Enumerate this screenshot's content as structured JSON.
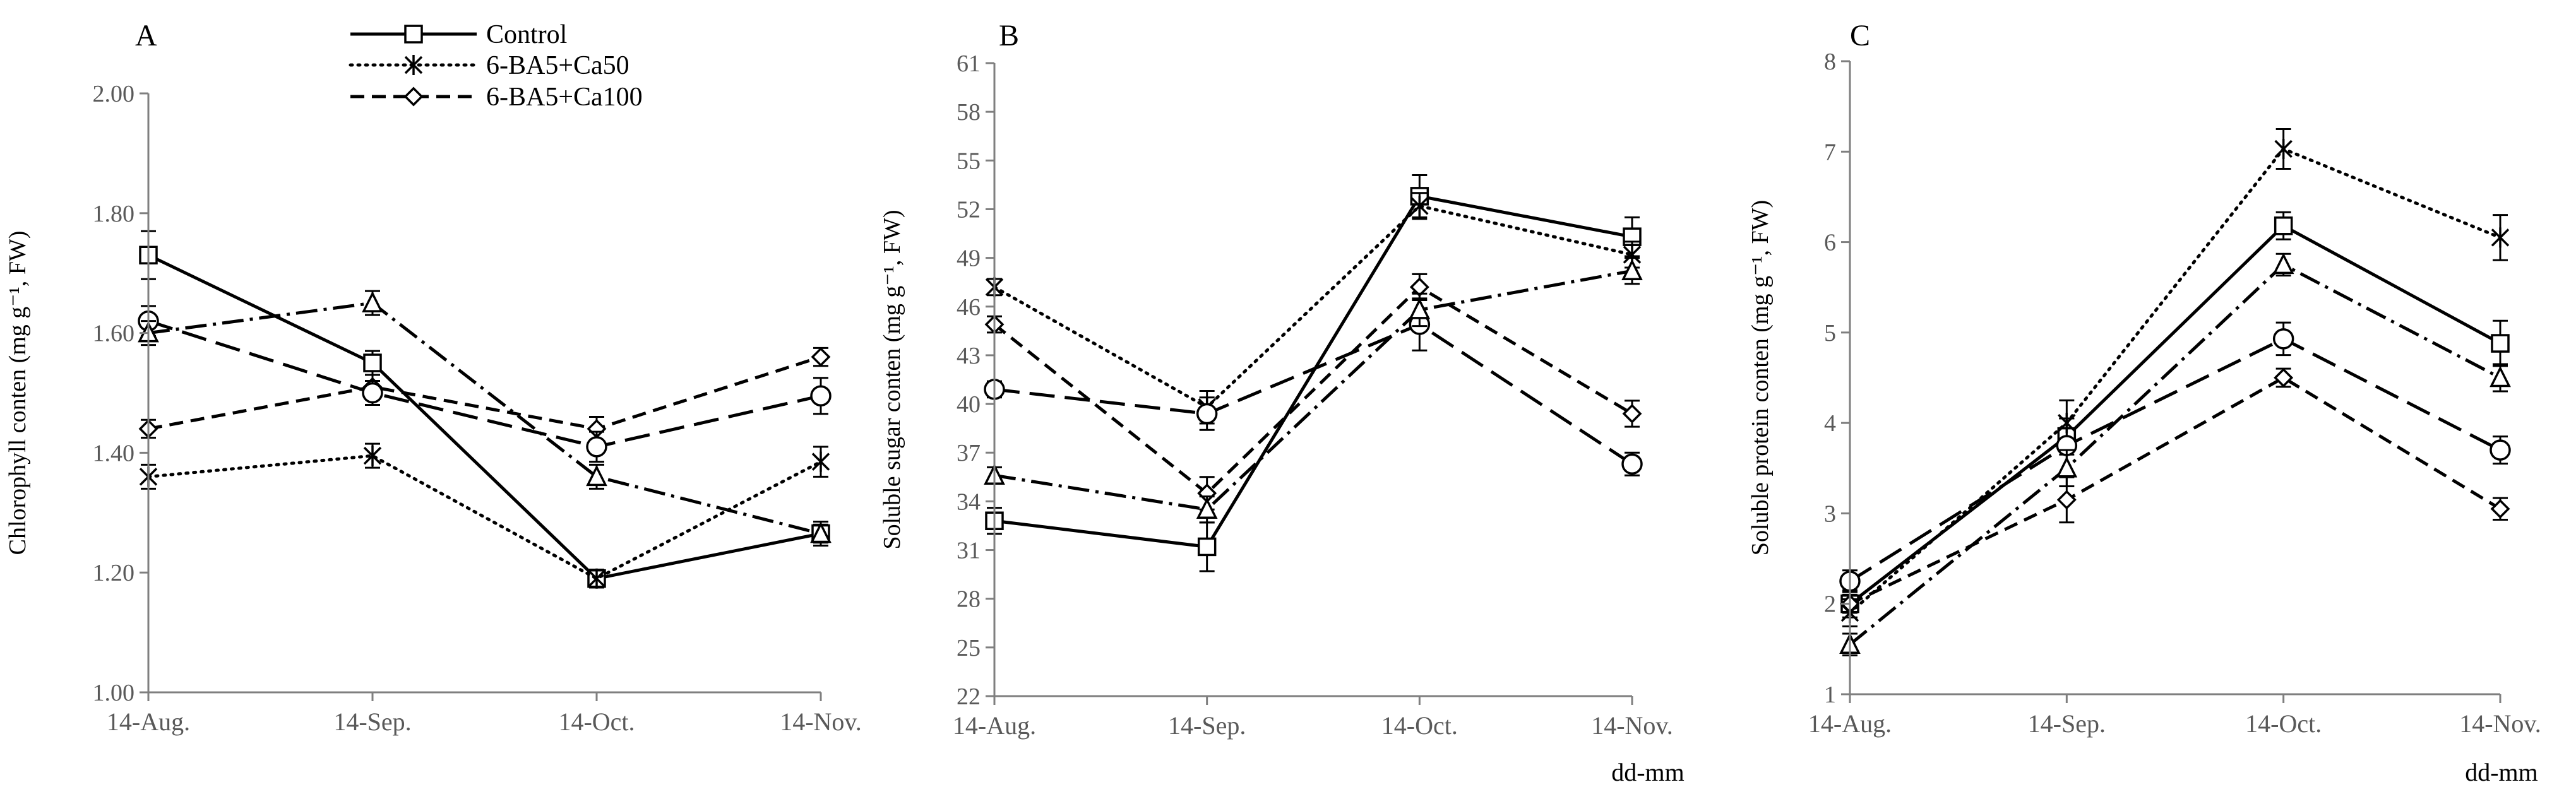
{
  "legend": [
    {
      "name": "Control",
      "marker": "square",
      "dash": "solid"
    },
    {
      "name": "6-BA5+Ca50",
      "marker": "star",
      "dash": "dot"
    },
    {
      "name": "6-BA5+Ca100",
      "marker": "diamond",
      "dash": "dash"
    }
  ],
  "colors": {
    "line": "#000000",
    "axis": "#7f7f7f",
    "tick_text": "#595959",
    "background": "#ffffff"
  },
  "chart_data": [
    {
      "type": "line",
      "panel": "A",
      "ylabel": "Chlorophyll conten (mg g⁻¹, FW)",
      "xlabel": "",
      "categories": [
        "14-Aug.",
        "14-Sep.",
        "14-Oct.",
        "14-Nov."
      ],
      "ylim": [
        1.0,
        2.0
      ],
      "yticks": [
        "1.00",
        "1.20",
        "1.40",
        "1.60",
        "1.80",
        "2.00"
      ],
      "series": [
        {
          "name": "Control",
          "marker": "square",
          "dash": "solid",
          "values": [
            1.73,
            1.55,
            1.19,
            1.265
          ],
          "err": [
            0.04,
            0.02,
            0.015,
            0.02
          ]
        },
        {
          "name": "6-BA5+Ca50",
          "marker": "star",
          "dash": "dot",
          "values": [
            1.36,
            1.395,
            1.19,
            1.385
          ],
          "err": [
            0.02,
            0.02,
            0.015,
            0.025
          ]
        },
        {
          "name": "6-BA5+Ca100",
          "marker": "diamond",
          "dash": "dash",
          "values": [
            1.44,
            1.51,
            1.44,
            1.56
          ],
          "err": [
            0.015,
            0.02,
            0.02,
            0.015
          ]
        },
        {
          "name": "",
          "marker": "circle",
          "dash": "longdash",
          "values": [
            1.62,
            1.5,
            1.41,
            1.495
          ],
          "err": [
            0.025,
            0.02,
            0.025,
            0.03
          ]
        },
        {
          "name": "",
          "marker": "triangle",
          "dash": "dashdot",
          "values": [
            1.6,
            1.65,
            1.36,
            1.265
          ],
          "err": [
            0.02,
            0.02,
            0.02,
            0.015
          ]
        }
      ]
    },
    {
      "type": "line",
      "panel": "B",
      "ylabel": "Soluble sugar conten (mg g⁻¹, FW)",
      "xlabel": "dd-mm",
      "categories": [
        "14-Aug.",
        "14-Sep.",
        "14-Oct.",
        "14-Nov."
      ],
      "ylim": [
        22,
        61
      ],
      "yticks": [
        "22",
        "25",
        "28",
        "31",
        "34",
        "37",
        "40",
        "43",
        "46",
        "49",
        "52",
        "55",
        "58",
        "61"
      ],
      "series": [
        {
          "name": "Control",
          "marker": "square",
          "dash": "solid",
          "values": [
            32.8,
            31.2,
            52.8,
            50.3
          ],
          "err": [
            0.8,
            1.5,
            1.3,
            1.2
          ]
        },
        {
          "name": "6-BA5+Ca50",
          "marker": "star",
          "dash": "dot",
          "values": [
            47.2,
            39.8,
            52.2,
            49.2
          ],
          "err": [
            0.5,
            1.0,
            0.8,
            0.8
          ]
        },
        {
          "name": "6-BA5+Ca100",
          "marker": "diamond",
          "dash": "dash",
          "values": [
            44.9,
            34.5,
            47.2,
            39.4
          ],
          "err": [
            0.5,
            1.0,
            0.8,
            0.8
          ]
        },
        {
          "name": "",
          "marker": "circle",
          "dash": "longdash",
          "values": [
            40.9,
            39.4,
            44.9,
            36.3
          ],
          "err": [
            0.5,
            1.0,
            1.6,
            0.7
          ]
        },
        {
          "name": "",
          "marker": "triangle",
          "dash": "dashdot",
          "values": [
            35.6,
            33.5,
            45.8,
            48.2
          ],
          "err": [
            0.5,
            0.8,
            1.0,
            0.8
          ]
        }
      ]
    },
    {
      "type": "line",
      "panel": "C",
      "ylabel": "Soluble protein conten (mg g⁻¹, FW)",
      "xlabel": "dd-mm",
      "categories": [
        "14-Aug.",
        "14-Sep.",
        "14-Oct.",
        "14-Nov."
      ],
      "ylim": [
        1,
        8
      ],
      "yticks": [
        "1",
        "2",
        "3",
        "4",
        "5",
        "6",
        "7",
        "8"
      ],
      "series": [
        {
          "name": "Control",
          "marker": "square",
          "dash": "solid",
          "values": [
            2.0,
            3.85,
            6.18,
            4.88
          ],
          "err": [
            0.15,
            0.2,
            0.15,
            0.25
          ]
        },
        {
          "name": "6-BA5+Ca50",
          "marker": "star",
          "dash": "dot",
          "values": [
            1.9,
            4.0,
            7.03,
            6.05
          ],
          "err": [
            0.15,
            0.25,
            0.22,
            0.25
          ]
        },
        {
          "name": "6-BA5+Ca100",
          "marker": "diamond",
          "dash": "dash",
          "values": [
            2.0,
            3.15,
            4.5,
            3.05
          ],
          "err": [
            0.1,
            0.25,
            0.1,
            0.12
          ]
        },
        {
          "name": "",
          "marker": "circle",
          "dash": "longdash",
          "values": [
            2.25,
            3.75,
            4.93,
            3.7
          ],
          "err": [
            0.12,
            0.3,
            0.18,
            0.15
          ]
        },
        {
          "name": "",
          "marker": "triangle",
          "dash": "dashdot",
          "values": [
            1.55,
            3.5,
            5.75,
            4.5
          ],
          "err": [
            0.12,
            0.2,
            0.12,
            0.15
          ]
        }
      ]
    }
  ]
}
